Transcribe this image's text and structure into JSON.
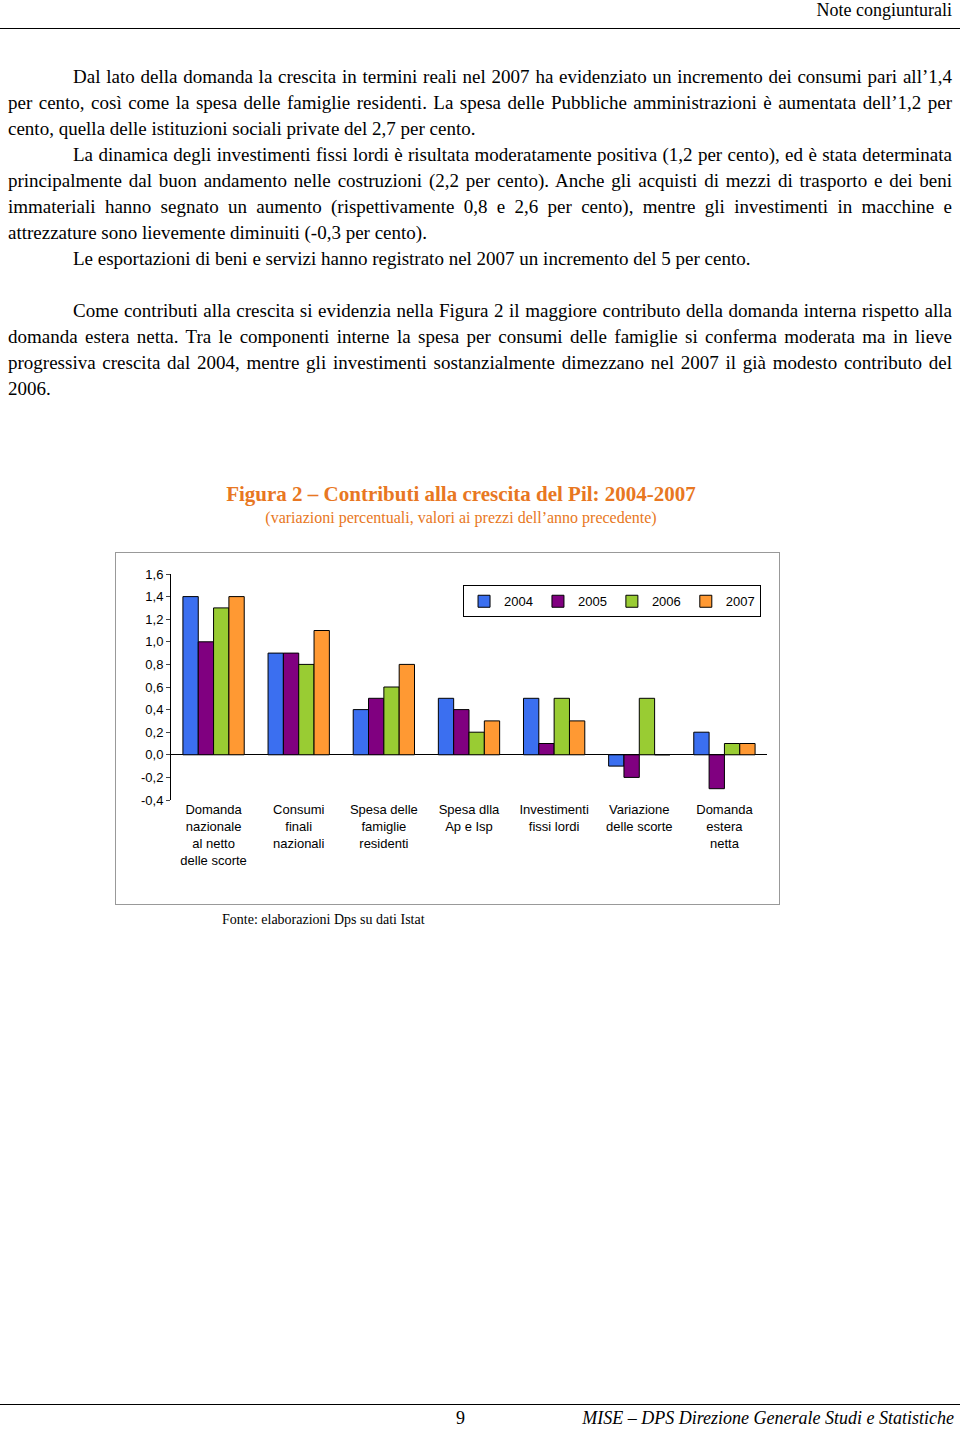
{
  "header": "Note congiunturali",
  "paragraphs": [
    "Dal lato della domanda la crescita in termini reali nel 2007 ha evidenziato un incremento dei consumi pari all’1,4 per cento, così come la spesa delle famiglie residenti. La spesa delle Pubbliche amministrazioni è aumentata dell’1,2 per cento, quella delle istituzioni sociali private del 2,7 per cento.",
    "La dinamica degli investimenti fissi lordi è risultata moderatamente positiva (1,2 per cento), ed è stata determinata principalmente dal buon andamento nelle costruzioni (2,2 per cento). Anche gli acquisti di mezzi di trasporto e dei beni immateriali hanno segnato un aumento (rispettivamente 0,8 e 2,6 per cento), mentre gli investimenti in macchine e attrezzature sono lievemente diminuiti (-0,3 per cento).",
    "Le esportazioni di beni e servizi hanno registrato nel 2007 un incremento del 5 per cento.",
    "Come contributi alla crescita si evidenzia nella Figura 2 il maggiore contributo della domanda interna rispetto alla domanda estera netta. Tra le componenti interne la spesa per consumi delle famiglie si conferma moderata ma in lieve progressiva crescita dal 2004, mentre gli investimenti sostanzialmente dimezzano nel 2007 il già modesto contributo del 2006."
  ],
  "figure": {
    "title": "Figura 2 – Contributi alla crescita del Pil: 2004-2007",
    "subtitle": "(variazioni percentuali, valori ai prezzi dell’anno precedente)"
  },
  "chart_data": {
    "type": "bar",
    "categories": [
      "Domanda\nnazionale\nal netto\ndelle scorte",
      "Consumi\nfinali\nnazionali",
      "Spesa delle\nfamiglie\nresidenti",
      "Spesa dlla\nAp e Isp",
      "Investimenti\nfissi lordi",
      "Variazione\ndelle scorte",
      "Domanda\nestera\nnetta"
    ],
    "series": [
      {
        "name": "2004",
        "color": "#3b6ff0",
        "values": [
          1.4,
          0.9,
          0.4,
          0.5,
          0.5,
          -0.1,
          0.2
        ]
      },
      {
        "name": "2005",
        "color": "#800080",
        "values": [
          1.0,
          0.9,
          0.5,
          0.4,
          0.1,
          -0.2,
          -0.3
        ]
      },
      {
        "name": "2006",
        "color": "#99cc33",
        "values": [
          1.3,
          0.8,
          0.6,
          0.2,
          0.5,
          0.5,
          0.1
        ]
      },
      {
        "name": "2007",
        "color": "#ff9933",
        "values": [
          1.4,
          1.1,
          0.8,
          0.3,
          0.3,
          0.0,
          0.1
        ]
      }
    ],
    "ylim": [
      -0.4,
      1.6
    ],
    "yticks": [
      {
        "value": -0.4,
        "label": "-0,4"
      },
      {
        "value": -0.2,
        "label": "-0,2"
      },
      {
        "value": 0,
        "label": "0,0"
      },
      {
        "value": 0.2,
        "label": "0,2"
      },
      {
        "value": 0.4,
        "label": "0,4"
      },
      {
        "value": 0.6,
        "label": "0,6"
      },
      {
        "value": 0.8,
        "label": "0,8"
      },
      {
        "value": 1.0,
        "label": "1,0"
      },
      {
        "value": 1.2,
        "label": "1,2"
      },
      {
        "value": 1.4,
        "label": "1,4"
      },
      {
        "value": 1.6,
        "label": "1,6"
      }
    ],
    "grid": false,
    "legend": "top-right"
  },
  "source": "Fonte: elaborazioni Dps su dati Istat",
  "footer": {
    "page": "9",
    "text": "MISE – DPS Direzione Generale Studi e Statistiche"
  }
}
